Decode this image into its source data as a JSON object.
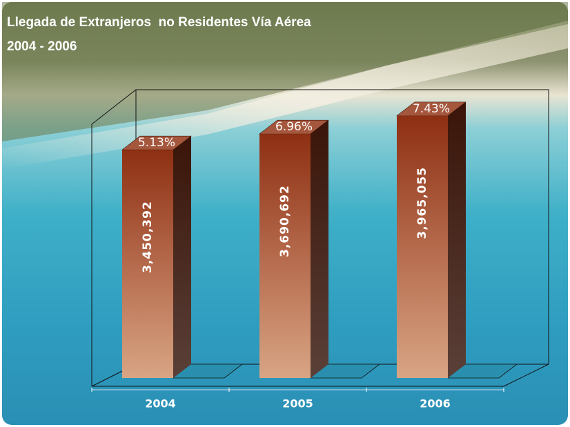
{
  "chart_data": {
    "type": "bar3d",
    "title": "Llegada de Extranjeros  no Residentes Vía Aérea",
    "subtitle": "2004 - 2006",
    "categories": [
      "2004",
      "2005",
      "2006"
    ],
    "values": [
      3450392,
      3690692,
      3965055
    ],
    "value_labels": [
      "3,450,392",
      "3,690,692",
      "3,965,055"
    ],
    "growth_labels": [
      "5.13%",
      "6.96%",
      "7.43%"
    ],
    "ylim": [
      0,
      4360000
    ]
  }
}
